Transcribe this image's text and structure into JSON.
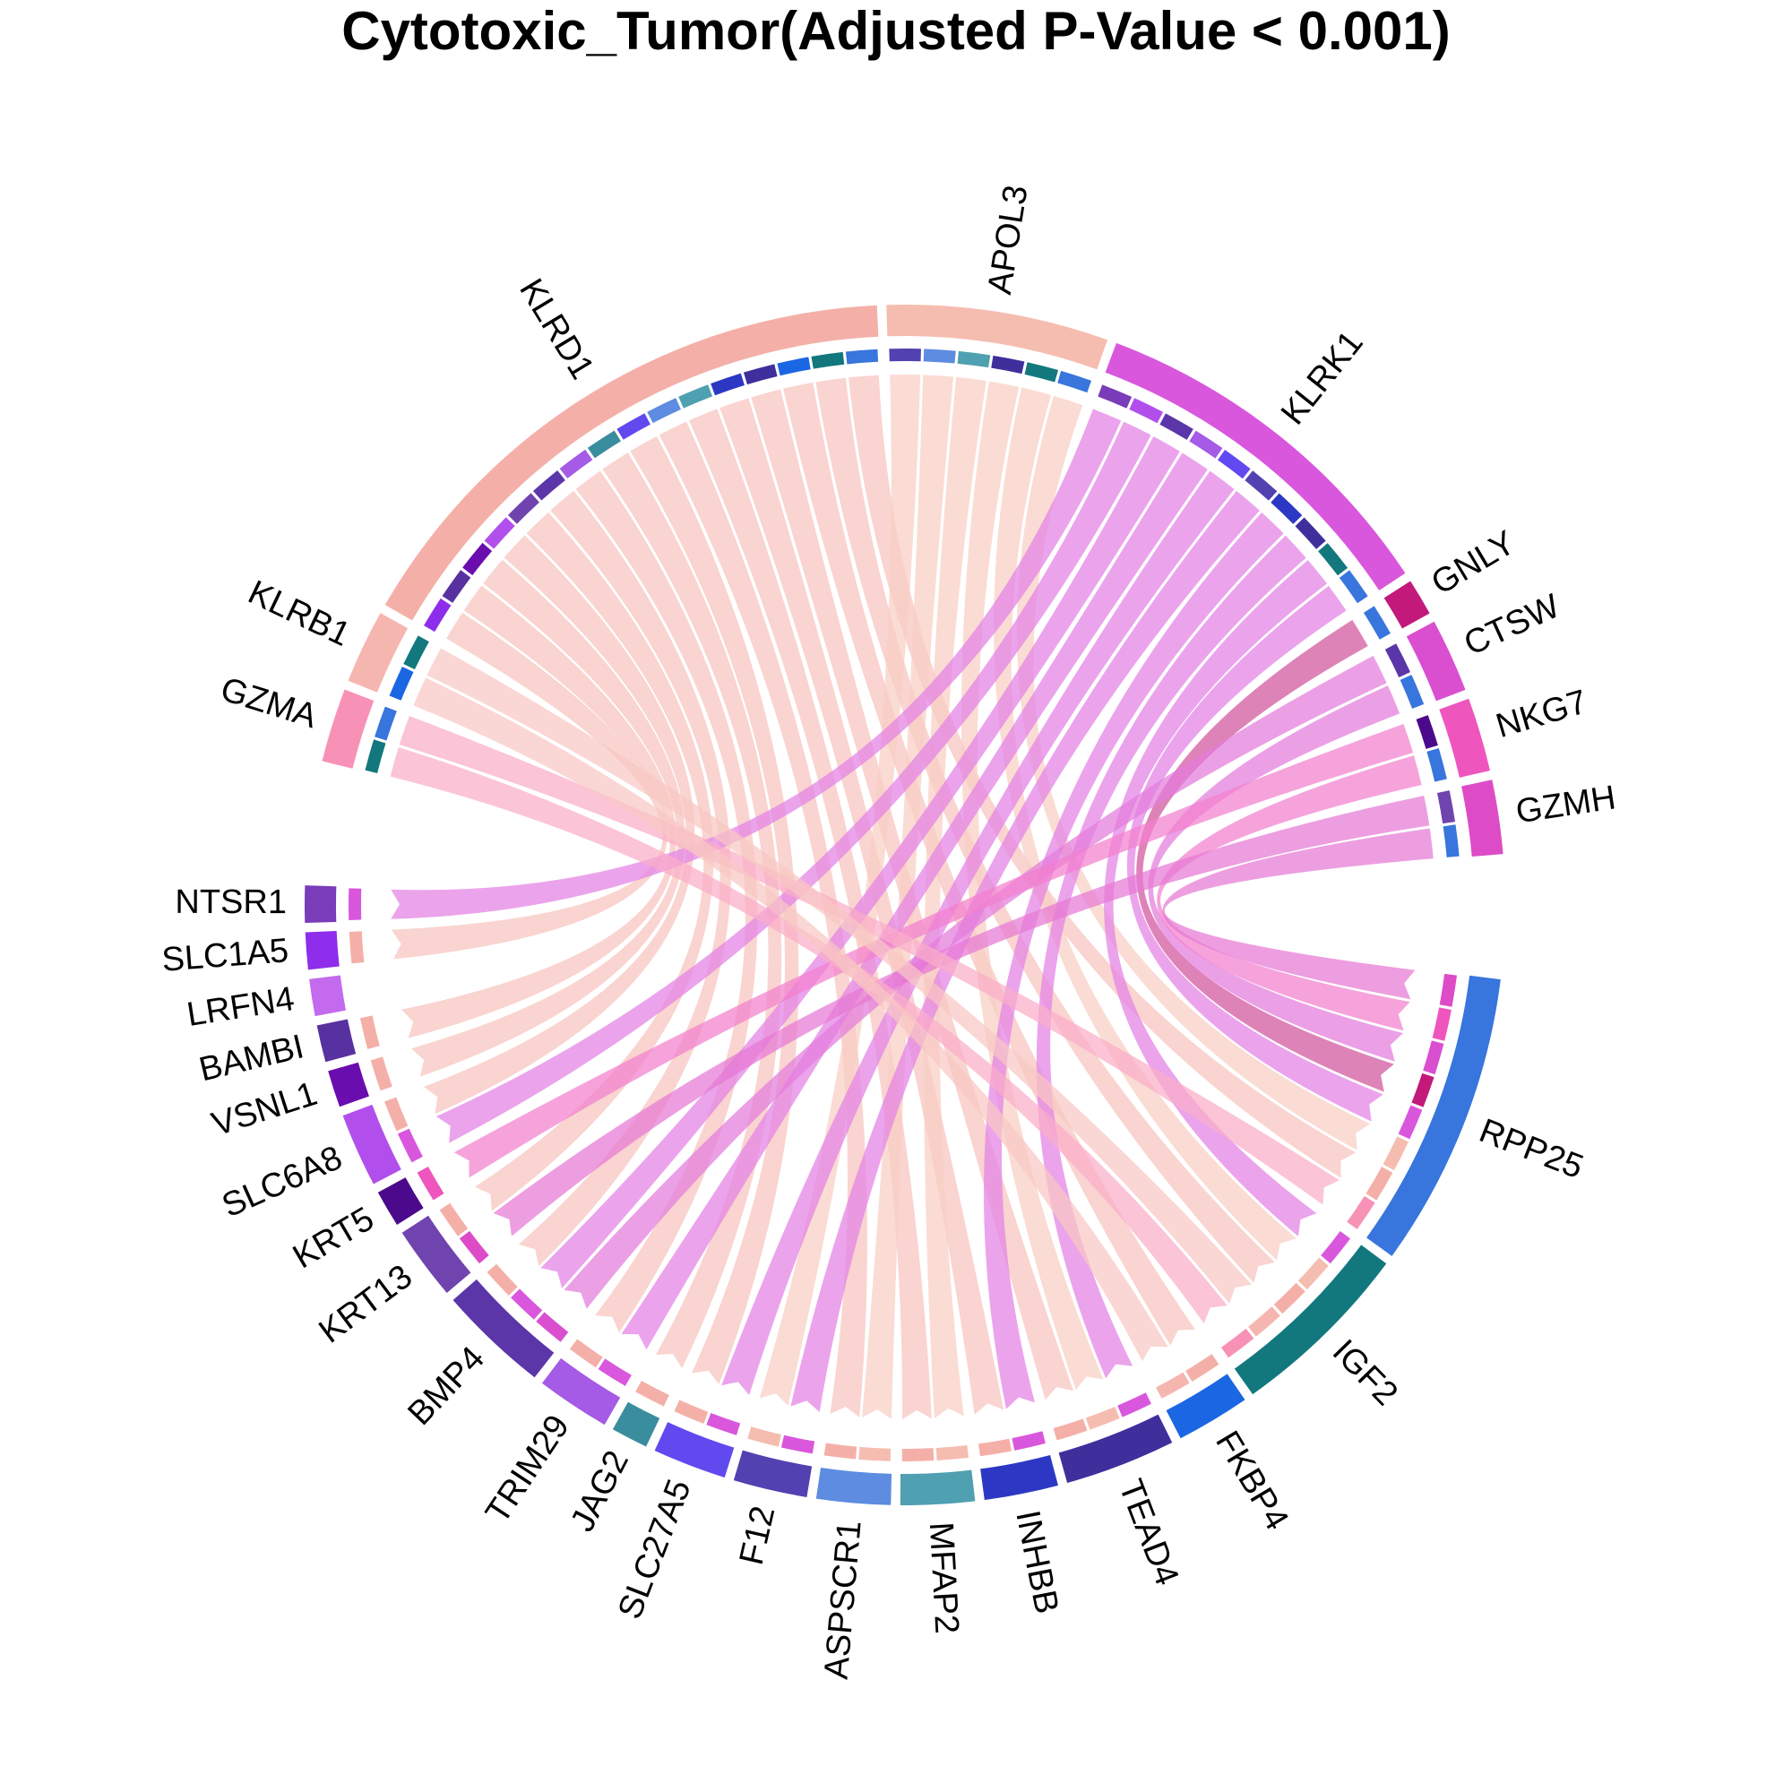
{
  "chart_data": {
    "type": "chord",
    "title": "Cytotoxic_Tumor(Adjusted P-Value < 0.001)",
    "sectors": [
      {
        "name": "KLRD1",
        "color": "#F4B0A8",
        "group": "ligand"
      },
      {
        "name": "APOL3",
        "color": "#F5BDB0",
        "group": "ligand"
      },
      {
        "name": "KLRK1",
        "color": "#D957DC",
        "group": "ligand"
      },
      {
        "name": "GNLY",
        "color": "#C2197A",
        "group": "ligand"
      },
      {
        "name": "CTSW",
        "color": "#D94FD0",
        "group": "ligand"
      },
      {
        "name": "NKG7",
        "color": "#EE56BD",
        "group": "ligand"
      },
      {
        "name": "GZMH",
        "color": "#DD4CC6",
        "group": "ligand"
      },
      {
        "name": "RPP25",
        "color": "#3875DD",
        "group": "receptor"
      },
      {
        "name": "IGF2",
        "color": "#12787E",
        "group": "receptor"
      },
      {
        "name": "FKBP4",
        "color": "#1B66E3",
        "group": "receptor"
      },
      {
        "name": "TEAD4",
        "color": "#3F2F9C",
        "group": "receptor"
      },
      {
        "name": "INHBB",
        "color": "#2C38C4",
        "group": "receptor"
      },
      {
        "name": "MFAP2",
        "color": "#4FA0B0",
        "group": "receptor"
      },
      {
        "name": "ASPSCR1",
        "color": "#5D8CE0",
        "group": "receptor"
      },
      {
        "name": "F12",
        "color": "#5241B0",
        "group": "receptor"
      },
      {
        "name": "SLC27A5",
        "color": "#6149F0",
        "group": "receptor"
      },
      {
        "name": "JAG2",
        "color": "#3A8D9C",
        "group": "receptor"
      },
      {
        "name": "TRIM29",
        "color": "#A55BE5",
        "group": "receptor"
      },
      {
        "name": "BMP4",
        "color": "#5A36A8",
        "group": "receptor"
      },
      {
        "name": "KRT13",
        "color": "#7044AE",
        "group": "receptor"
      },
      {
        "name": "KRT5",
        "color": "#4B0A8C",
        "group": "receptor"
      },
      {
        "name": "SLC6A8",
        "color": "#B24FEC",
        "group": "receptor"
      },
      {
        "name": "VSNL1",
        "color": "#6A0DAF",
        "group": "receptor"
      },
      {
        "name": "BAMBI",
        "color": "#5831A0",
        "group": "receptor"
      },
      {
        "name": "LRFN4",
        "color": "#C46AEE",
        "group": "receptor"
      },
      {
        "name": "SLC1A5",
        "color": "#8E2DEB",
        "group": "receptor"
      },
      {
        "name": "NTSR1",
        "color": "#7A3CB8",
        "group": "receptor"
      },
      {
        "name": "GZMA",
        "color": "#F891B6",
        "group": "ligand"
      },
      {
        "name": "KLRB1",
        "color": "#F6B6B0",
        "group": "ligand"
      }
    ],
    "links": [
      {
        "source": "KLRD1",
        "target": "RPP25",
        "value": 1
      },
      {
        "source": "KLRD1",
        "target": "IGF2",
        "value": 1
      },
      {
        "source": "KLRD1",
        "target": "FKBP4",
        "value": 1
      },
      {
        "source": "KLRD1",
        "target": "TEAD4",
        "value": 1
      },
      {
        "source": "KLRD1",
        "target": "INHBB",
        "value": 1
      },
      {
        "source": "KLRD1",
        "target": "MFAP2",
        "value": 1
      },
      {
        "source": "KLRD1",
        "target": "ASPSCR1",
        "value": 1
      },
      {
        "source": "KLRD1",
        "target": "SLC27A5",
        "value": 1
      },
      {
        "source": "KLRD1",
        "target": "JAG2",
        "value": 1
      },
      {
        "source": "KLRD1",
        "target": "TRIM29",
        "value": 1
      },
      {
        "source": "KLRD1",
        "target": "BMP4",
        "value": 1
      },
      {
        "source": "KLRD1",
        "target": "KRT13",
        "value": 1
      },
      {
        "source": "KLRD1",
        "target": "SLC6A8",
        "value": 1
      },
      {
        "source": "KLRD1",
        "target": "VSNL1",
        "value": 1
      },
      {
        "source": "KLRD1",
        "target": "BAMBI",
        "value": 1
      },
      {
        "source": "KLRD1",
        "target": "SLC1A5",
        "value": 1
      },
      {
        "source": "APOL3",
        "target": "RPP25",
        "value": 1
      },
      {
        "source": "APOL3",
        "target": "IGF2",
        "value": 1
      },
      {
        "source": "APOL3",
        "target": "TEAD4",
        "value": 1
      },
      {
        "source": "APOL3",
        "target": "MFAP2",
        "value": 1
      },
      {
        "source": "APOL3",
        "target": "ASPSCR1",
        "value": 1
      },
      {
        "source": "APOL3",
        "target": "F12",
        "value": 1
      },
      {
        "source": "KLRK1",
        "target": "RPP25",
        "value": 1
      },
      {
        "source": "KLRK1",
        "target": "IGF2",
        "value": 1
      },
      {
        "source": "KLRK1",
        "target": "TEAD4",
        "value": 1
      },
      {
        "source": "KLRK1",
        "target": "INHBB",
        "value": 1
      },
      {
        "source": "KLRK1",
        "target": "F12",
        "value": 1
      },
      {
        "source": "KLRK1",
        "target": "SLC27A5",
        "value": 1
      },
      {
        "source": "KLRK1",
        "target": "TRIM29",
        "value": 1
      },
      {
        "source": "KLRK1",
        "target": "BMP4",
        "value": 1
      },
      {
        "source": "KLRK1",
        "target": "SLC6A8",
        "value": 1
      },
      {
        "source": "KLRK1",
        "target": "NTSR1",
        "value": 1
      },
      {
        "source": "GNLY",
        "target": "RPP25",
        "value": 1
      },
      {
        "source": "CTSW",
        "target": "RPP25",
        "value": 1
      },
      {
        "source": "CTSW",
        "target": "BMP4",
        "value": 1
      },
      {
        "source": "NKG7",
        "target": "RPP25",
        "value": 1
      },
      {
        "source": "NKG7",
        "target": "KRT5",
        "value": 1
      },
      {
        "source": "GZMH",
        "target": "RPP25",
        "value": 1
      },
      {
        "source": "GZMH",
        "target": "KRT13",
        "value": 1
      },
      {
        "source": "GZMA",
        "target": "RPP25",
        "value": 1
      },
      {
        "source": "GZMA",
        "target": "IGF2",
        "value": 1
      },
      {
        "source": "KLRB1",
        "target": "IGF2",
        "value": 1
      },
      {
        "source": "KLRB1",
        "target": "FKBP4",
        "value": 1
      }
    ]
  }
}
